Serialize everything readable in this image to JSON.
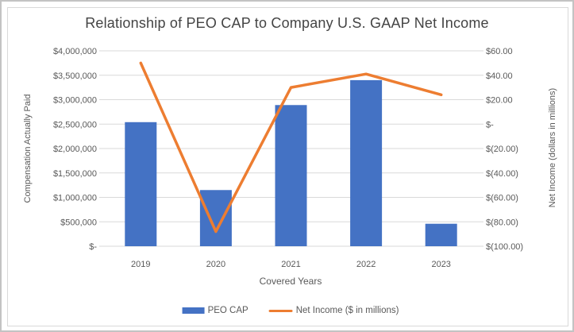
{
  "chart_data": {
    "type": "combo",
    "title": "Relationship of PEO CAP to Company U.S. GAAP Net Income",
    "categories": [
      "2019",
      "2020",
      "2021",
      "2022",
      "2023"
    ],
    "series": [
      {
        "name": "PEO CAP",
        "type": "bar",
        "axis": "left",
        "color": "#4472C4",
        "values": [
          2540000,
          1150000,
          2890000,
          3400000,
          460000
        ]
      },
      {
        "name": "Net Income ($ in millions)",
        "type": "line",
        "axis": "right",
        "color": "#ED7D31",
        "values": [
          50,
          -88,
          30,
          41,
          24
        ]
      }
    ],
    "xlabel": "Covered Years",
    "left_axis": {
      "label": "Compensation Actually Paid",
      "range": [
        0,
        4000000
      ],
      "step": 500000,
      "tick_labels": [
        "$-",
        "$500,000",
        "$1,000,000",
        "$1,500,000",
        "$2,000,000",
        "$2,500,000",
        "$3,000,000",
        "$3,500,000",
        "$4,000,000"
      ]
    },
    "right_axis": {
      "label": "Net Income (dollars in millions)",
      "range": [
        -100,
        60
      ],
      "step": 20,
      "tick_labels": [
        "$(100.00)",
        "$(80.00)",
        "$(60.00)",
        "$(40.00)",
        "$(20.00)",
        "$-",
        "$20.00",
        "$40.00",
        "$60.00"
      ]
    },
    "legend": {
      "position": "bottom",
      "entries": [
        "PEO CAP",
        "Net Income ($ in millions)"
      ]
    },
    "grid": true,
    "colors": {
      "bar": "#4472C4",
      "line": "#ED7D31",
      "text": "#595959",
      "gridline": "#D9D9D9"
    }
  }
}
